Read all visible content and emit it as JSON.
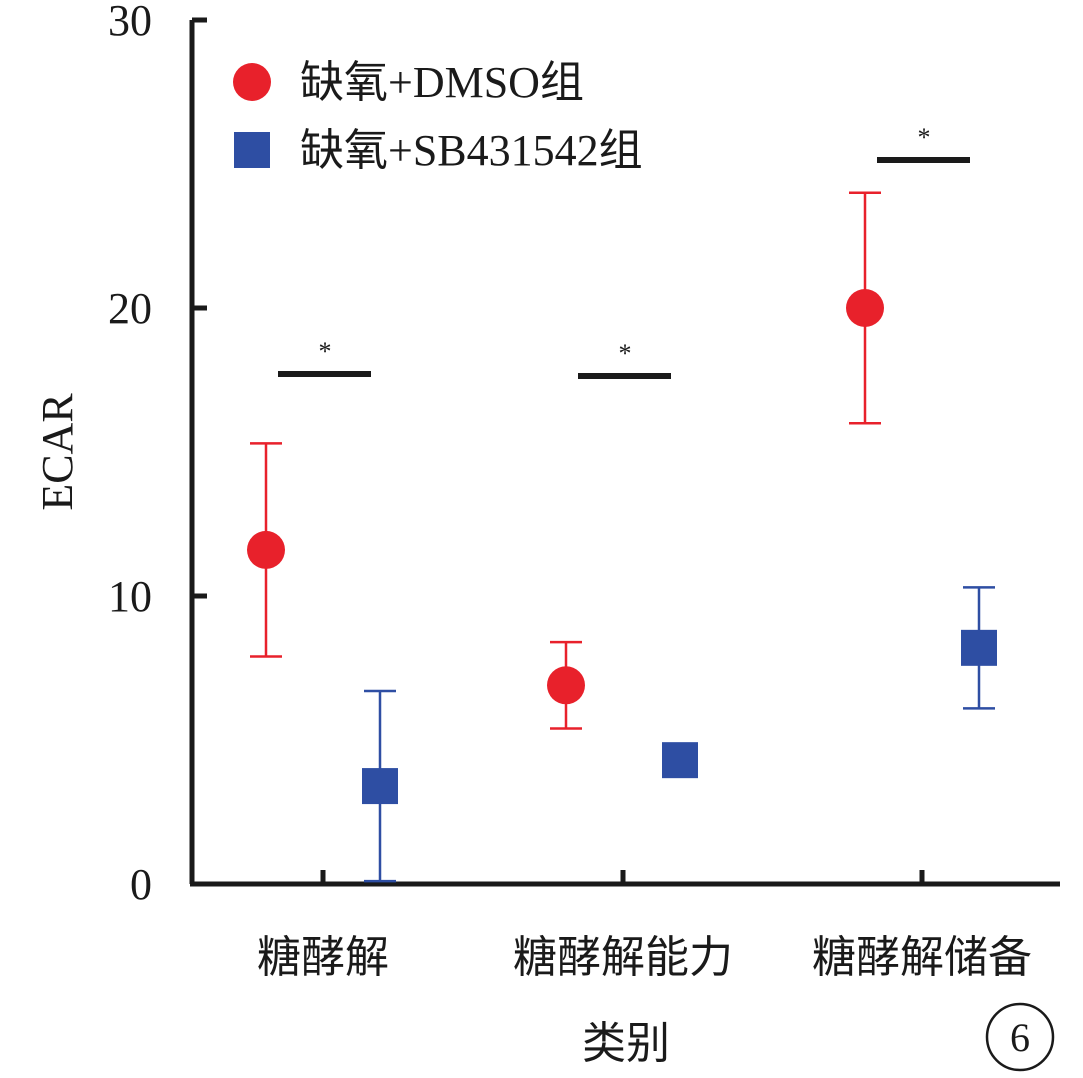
{
  "chart_data": {
    "type": "scatter",
    "xlabel": "类别",
    "ylabel": "ECAR",
    "ylim": [
      0,
      30
    ],
    "yticks": [
      0,
      10,
      20,
      30
    ],
    "categories": [
      "糖酵解",
      "糖酵解能力",
      "糖酵解储备"
    ],
    "series": [
      {
        "name": "缺氧+DMSO组",
        "marker": "circle",
        "color": "#e8212b",
        "values": [
          11.6,
          6.9,
          20.0
        ],
        "error": [
          3.7,
          1.5,
          4.0
        ]
      },
      {
        "name": "缺氧+SB431542组",
        "marker": "square",
        "color": "#2e4ea3",
        "values": [
          3.4,
          4.3,
          8.2
        ],
        "error": [
          3.3,
          0,
          2.1
        ]
      }
    ],
    "significance": [
      {
        "category": "糖酵解",
        "label": "*"
      },
      {
        "category": "糖酵解能力",
        "label": "*"
      },
      {
        "category": "糖酵解储备",
        "label": "*"
      }
    ],
    "legend_position": "top-left",
    "grid": false
  },
  "panel_label": "6"
}
